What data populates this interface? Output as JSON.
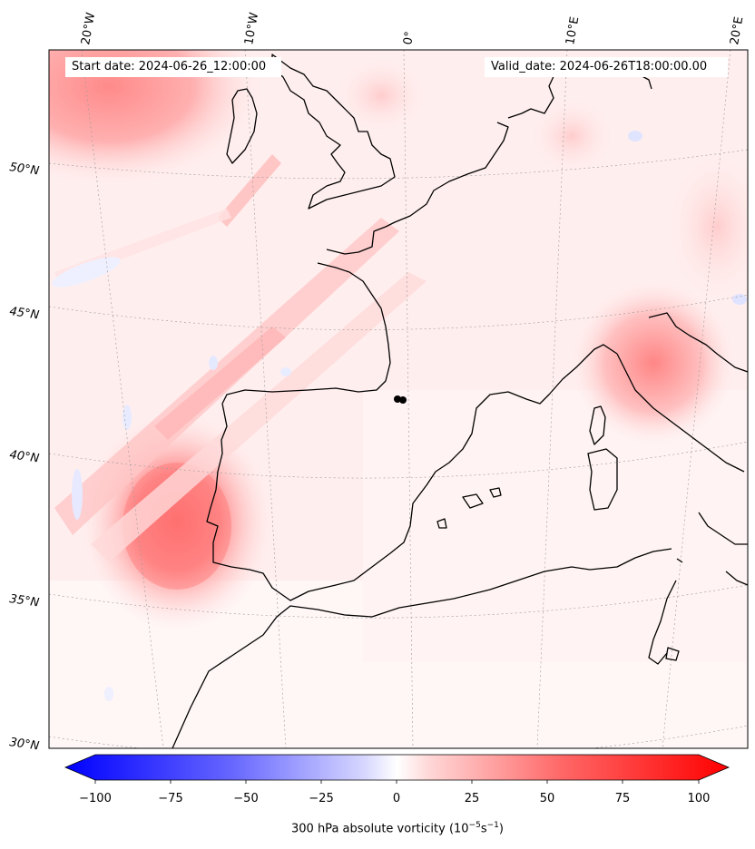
{
  "map": {
    "longitude_labels": [
      "20°W",
      "10°W",
      "0°",
      "10°E",
      "20°E"
    ],
    "latitude_labels": [
      "50°N",
      "45°N",
      "40°N",
      "35°N",
      "30°N"
    ],
    "start_date": "Start date: 2024-06-26_12:00:00",
    "valid_date": "Valid_date: 2024-06-26T18:00:00.00",
    "field": "300 hPa absolute vorticity",
    "colors": {
      "positive": "#ff0000",
      "negative": "#0000ff",
      "coast": "#000000",
      "background": "#fff5f5"
    }
  },
  "colorbar": {
    "ticks": [
      "−100",
      "−75",
      "−50",
      "−25",
      "0",
      "25",
      "50",
      "75",
      "100"
    ],
    "label_main": "300 hPa absolute vorticity (10",
    "label_exp1": "−5",
    "label_mid": "s",
    "label_exp2": "−1",
    "label_end": ")",
    "range": [
      -100,
      100
    ],
    "extend": "both"
  }
}
